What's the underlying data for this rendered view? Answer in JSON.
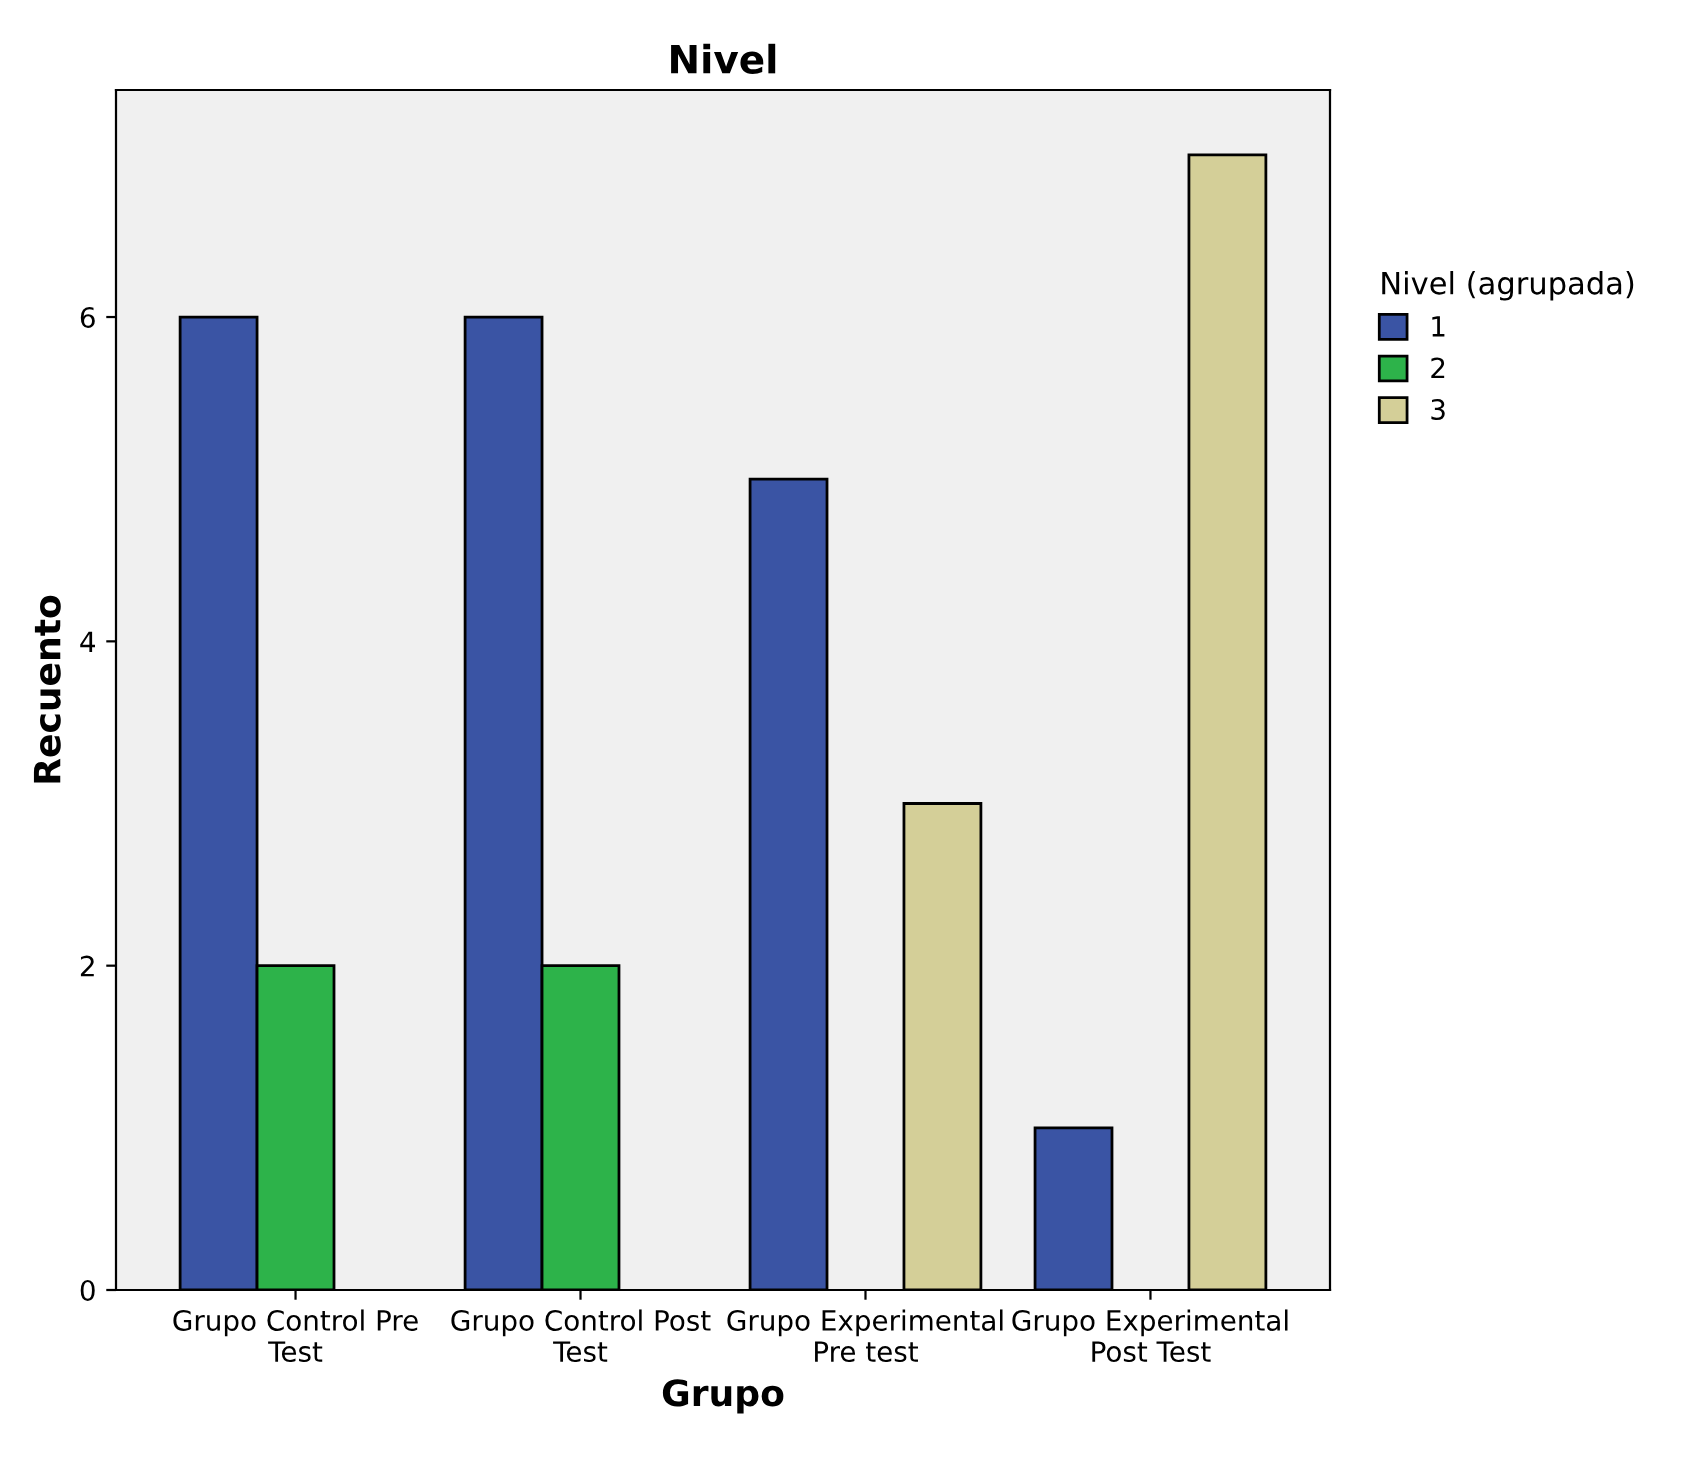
{
  "chart_data": {
    "type": "bar",
    "title": "Nivel",
    "xlabel": "Grupo",
    "ylabel": "Recuento",
    "legend_title": "Nivel (agrupada)",
    "categories": [
      "Grupo Control Pre\nTest",
      "Grupo Control Post\nTest",
      "Grupo Experimental\nPre test",
      "Grupo Experimental\nPost Test"
    ],
    "series": [
      {
        "name": "1",
        "color": "#3a54a4",
        "values": [
          6,
          6,
          5,
          1
        ]
      },
      {
        "name": "2",
        "color": "#2db34a",
        "values": [
          2,
          2,
          null,
          null
        ]
      },
      {
        "name": "3",
        "color": "#d4cf98",
        "values": [
          null,
          null,
          3,
          7
        ]
      }
    ],
    "ylim": [
      0,
      7.4
    ],
    "yticks": [
      0,
      2,
      4,
      6
    ],
    "grid": false,
    "legend": "right"
  }
}
